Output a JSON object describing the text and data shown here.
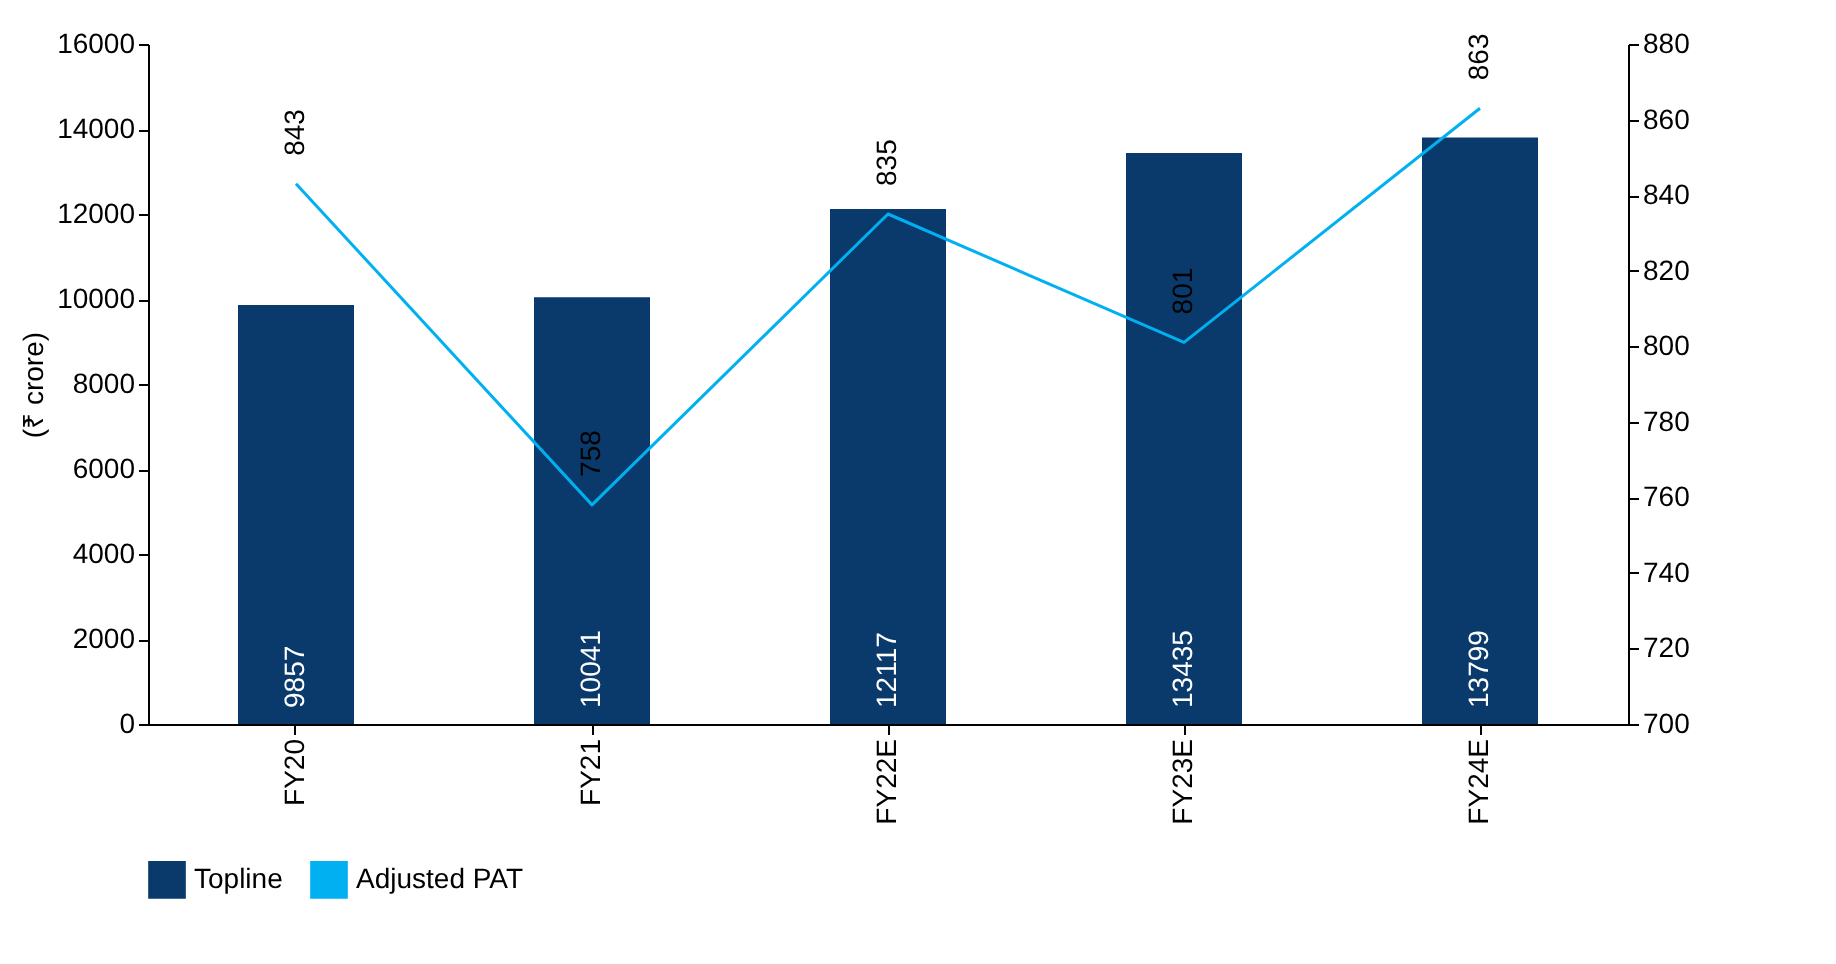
{
  "chart_data": {
    "type": "bar",
    "ylabel": "(₹ crore)",
    "categories": [
      "FY20",
      "FY21",
      "FY22E",
      "FY23E",
      "FY24E"
    ],
    "series": [
      {
        "name": "Topline",
        "color": "#0a3a6b",
        "values": [
          9857,
          10041,
          12117,
          13435,
          13799
        ]
      },
      {
        "name": "Adjusted PAT",
        "type": "line",
        "axis": "y2",
        "color": "#00b0f0",
        "values": [
          843,
          758,
          835,
          801,
          863
        ]
      }
    ],
    "ylim": [
      0,
      16000
    ],
    "yticks": [
      0,
      2000,
      4000,
      6000,
      8000,
      10000,
      12000,
      14000,
      16000
    ],
    "y2lim": [
      700,
      880
    ],
    "y2ticks": [
      700,
      720,
      740,
      760,
      780,
      800,
      820,
      840,
      860,
      880
    ],
    "data_labels": true,
    "grid": false,
    "legend": "bottom"
  }
}
